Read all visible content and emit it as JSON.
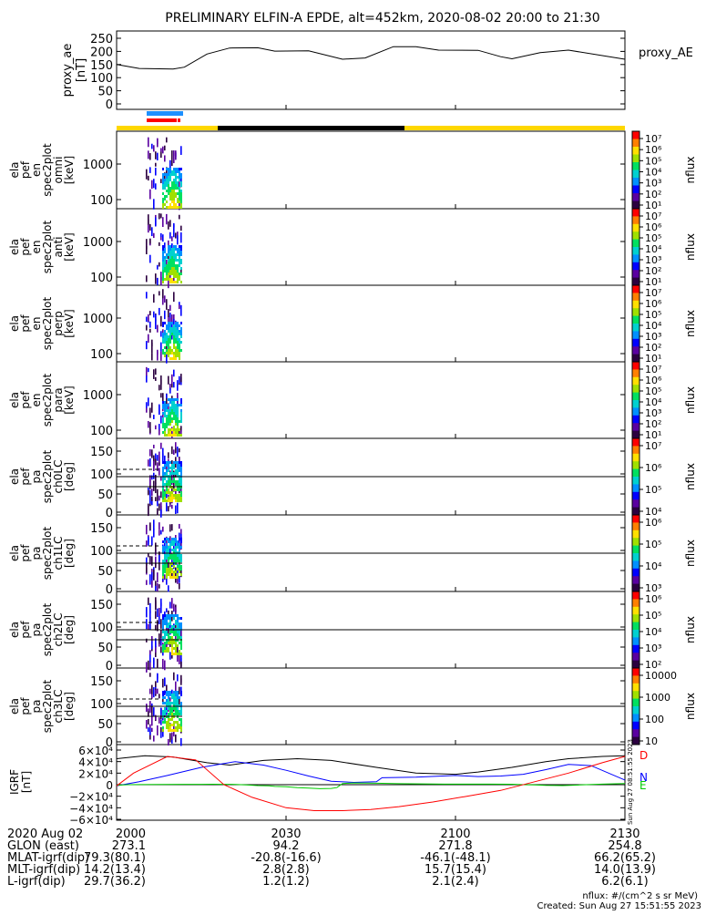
{
  "title": "PRELIMINARY ELFIN-A EPDE, alt=452km, 2020-08-02 20:00 to 21:30",
  "chart_data": {
    "type": "line",
    "x_ticks": [
      "2000",
      "2030",
      "2100",
      "2130"
    ],
    "x_range": [
      "20:00",
      "21:30"
    ],
    "panels": [
      {
        "id": "proxy_ae",
        "ylabel": [
          "proxy_ae",
          "[nT]"
        ],
        "legend": "proxy_AE",
        "yticks": [
          "250",
          "200",
          "150",
          "100",
          "50",
          "0"
        ],
        "ylim": [
          0,
          260
        ],
        "series": [
          {
            "name": "proxy_AE",
            "color": "#000000",
            "points": [
              [
                0,
                150
              ],
              [
                4,
                135
              ],
              [
                10,
                133
              ],
              [
                12,
                140
              ],
              [
                16,
                190
              ],
              [
                20,
                213
              ],
              [
                25,
                214
              ],
              [
                28,
                201
              ],
              [
                34,
                202
              ],
              [
                40,
                170
              ],
              [
                44,
                175
              ],
              [
                49,
                218
              ],
              [
                53,
                218
              ],
              [
                57,
                205
              ],
              [
                64,
                204
              ],
              [
                68,
                180
              ],
              [
                70,
                172
              ],
              [
                75,
                195
              ],
              [
                80,
                205
              ],
              [
                90,
                170
              ]
            ]
          }
        ]
      },
      {
        "id": "en_omni",
        "ylabel": [
          "ela",
          "pef",
          "en",
          "spec2plot",
          "omni",
          "[keV]"
        ],
        "yticks": [
          "1000",
          "100"
        ],
        "cbar": "nflux"
      },
      {
        "id": "en_anti",
        "ylabel": [
          "ela",
          "pef",
          "en",
          "spec2plot",
          "anti",
          "[keV]"
        ],
        "yticks": [
          "1000",
          "100"
        ],
        "cbar": "nflux"
      },
      {
        "id": "en_perp",
        "ylabel": [
          "ela",
          "pef",
          "en",
          "spec2plot",
          "perp",
          "[keV]"
        ],
        "yticks": [
          "1000",
          "100"
        ],
        "cbar": "nflux"
      },
      {
        "id": "en_para",
        "ylabel": [
          "ela",
          "pef",
          "en",
          "spec2plot",
          "para",
          "[keV]"
        ],
        "yticks": [
          "1000",
          "100"
        ],
        "cbar": "nflux"
      },
      {
        "id": "pa_ch0",
        "ylabel": [
          "ela",
          "pef",
          "pa",
          "spec2plot",
          "ch0LC",
          "[deg]"
        ],
        "yticks": [
          "150",
          "100",
          "50",
          "0"
        ],
        "cbar": "nflux"
      },
      {
        "id": "pa_ch1",
        "ylabel": [
          "ela",
          "pef",
          "pa",
          "spec2plot",
          "ch1LC",
          "[deg]"
        ],
        "yticks": [
          "150",
          "100",
          "50",
          "0"
        ],
        "cbar": "nflux"
      },
      {
        "id": "pa_ch2",
        "ylabel": [
          "ela",
          "pef",
          "pa",
          "spec2plot",
          "ch2LC",
          "[deg]"
        ],
        "yticks": [
          "150",
          "100",
          "50",
          "0"
        ],
        "cbar": "nflux"
      },
      {
        "id": "pa_ch3",
        "ylabel": [
          "ela",
          "pef",
          "pa",
          "spec2plot",
          "ch3LC",
          "[deg]"
        ],
        "yticks": [
          "150",
          "100",
          "50",
          "0"
        ],
        "cbar": "nflux"
      },
      {
        "id": "igrf",
        "ylabel": [
          "IGRF",
          "[nT]"
        ],
        "yticks": [
          "6×10⁴",
          "4×10⁴",
          "2×10⁴",
          "0",
          "−2×10⁴",
          "−4×10⁴",
          "−6×10⁴"
        ],
        "ylim": [
          -62000,
          62000
        ],
        "series": [
          {
            "name": "D",
            "color": "#000000",
            "points": [
              [
                0,
                45000
              ],
              [
                5,
                50000
              ],
              [
                10,
                48000
              ],
              [
                16,
                38000
              ],
              [
                20,
                34000
              ],
              [
                26,
                42000
              ],
              [
                32,
                45000
              ],
              [
                38,
                42000
              ],
              [
                46,
                30000
              ],
              [
                53,
                20000
              ],
              [
                60,
                18000
              ],
              [
                64,
                22000
              ],
              [
                70,
                30000
              ],
              [
                76,
                40000
              ],
              [
                80,
                45000
              ],
              [
                86,
                49000
              ],
              [
                90,
                50000
              ]
            ]
          },
          {
            "name": "N",
            "color": "#0000ff",
            "points": [
              [
                0,
                -2000
              ],
              [
                4,
                5000
              ],
              [
                9,
                16000
              ],
              [
                15,
                30000
              ],
              [
                21,
                40000
              ],
              [
                26,
                34000
              ],
              [
                30,
                25000
              ],
              [
                34,
                15000
              ],
              [
                38,
                6000
              ],
              [
                42,
                4000
              ],
              [
                46,
                5000
              ],
              [
                47,
                12000
              ],
              [
                53,
                13000
              ],
              [
                60,
                16000
              ],
              [
                64,
                14000
              ],
              [
                68,
                15000
              ],
              [
                72,
                18000
              ],
              [
                76,
                26000
              ],
              [
                80,
                35000
              ],
              [
                84,
                33000
              ],
              [
                90,
                8000
              ]
            ]
          },
          {
            "name": "E",
            "color": "#00cc00",
            "points": [
              [
                0,
                -1000
              ],
              [
                2,
                0
              ],
              [
                4,
                200
              ],
              [
                8,
                300
              ],
              [
                12,
                600
              ],
              [
                15,
                700
              ],
              [
                17,
                800
              ],
              [
                19,
                700
              ],
              [
                21,
                400
              ],
              [
                23,
                -500
              ],
              [
                25,
                -1500
              ],
              [
                27,
                -2000
              ],
              [
                28,
                -3000
              ],
              [
                30,
                -3500
              ],
              [
                32,
                -5000
              ],
              [
                34,
                -6000
              ],
              [
                36,
                -7000
              ],
              [
                38,
                -6500
              ],
              [
                39,
                -5000
              ],
              [
                40,
                2000
              ],
              [
                42,
                3000
              ],
              [
                46,
                2500
              ],
              [
                50,
                1800
              ],
              [
                54,
                1400
              ],
              [
                58,
                1000
              ],
              [
                62,
                900
              ],
              [
                66,
                900
              ],
              [
                70,
                800
              ],
              [
                72,
                0
              ],
              [
                74,
                -500
              ],
              [
                76,
                -1200
              ],
              [
                79,
                -1500
              ],
              [
                82,
                -500
              ],
              [
                86,
                1000
              ],
              [
                90,
                2000
              ]
            ]
          },
          {
            "name": "D_total",
            "color": "#ff0000",
            "points": [
              [
                0,
                -2000
              ],
              [
                3,
                20000
              ],
              [
                9,
                49000
              ],
              [
                14,
                43000
              ],
              [
                19,
                0
              ],
              [
                24,
                -22000
              ],
              [
                30,
                -40000
              ],
              [
                35,
                -45000
              ],
              [
                40,
                -45000
              ],
              [
                45,
                -43000
              ],
              [
                50,
                -38000
              ],
              [
                56,
                -30000
              ],
              [
                62,
                -20000
              ],
              [
                68,
                -10000
              ],
              [
                74,
                5000
              ],
              [
                80,
                20000
              ],
              [
                86,
                38000
              ],
              [
                90,
                49000
              ]
            ]
          }
        ]
      }
    ],
    "bars": {
      "blue_bar": "#1e90ff",
      "red_bar": "#ff0000",
      "yellow": "#ffd700",
      "black": "#000000"
    }
  },
  "colorbars": [
    {
      "labels": [
        "10⁷",
        "10⁶",
        "10⁵",
        "10⁴",
        "10³",
        "10²",
        "10¹"
      ],
      "unit": "nflux"
    },
    {
      "labels": [
        "10⁷",
        "10⁶",
        "10⁵",
        "10⁴",
        "10³",
        "10²",
        "10¹"
      ],
      "unit": "nflux"
    },
    {
      "labels": [
        "10⁷",
        "10⁶",
        "10⁵",
        "10⁴",
        "10³",
        "10²",
        "10¹"
      ],
      "unit": "nflux"
    },
    {
      "labels": [
        "10⁷",
        "10⁶",
        "10⁵",
        "10⁴",
        "10³",
        "10²",
        "10¹"
      ],
      "unit": "nflux"
    },
    {
      "labels": [
        "10⁷",
        "10⁶",
        "10⁵",
        "10⁴"
      ],
      "unit": "nflux"
    },
    {
      "labels": [
        "10⁶",
        "10⁵",
        "10⁴",
        "10³"
      ],
      "unit": "nflux"
    },
    {
      "labels": [
        "10⁶",
        "10⁵",
        "10⁴",
        "10³",
        "10²"
      ],
      "unit": "nflux"
    },
    {
      "labels": [
        "10000",
        "1000",
        "100",
        "10"
      ],
      "unit": "nflux"
    }
  ],
  "igrf_legend": [
    "D",
    "N",
    "E"
  ],
  "footer": {
    "rows": [
      {
        "label": "2020 Aug 02",
        "vals": [
          "2000",
          "",
          "",
          ""
        ]
      },
      {
        "label": "GLON (east)",
        "vals": [
          "273.1",
          "94.2",
          "271.8",
          "254.8"
        ]
      },
      {
        "label": "MLAT-igrf(dip)",
        "vals": [
          "79.3(80.1)",
          "-20.8(-16.6)",
          "-46.1(-48.1)",
          "66.2(65.2)"
        ]
      },
      {
        "label": "MLT-igrf(dip)",
        "vals": [
          "14.2(13.4)",
          "2.8(2.8)",
          "15.7(15.4)",
          "14.0(13.9)"
        ]
      },
      {
        "label": "L-igrf(dip)",
        "vals": [
          "29.7(36.2)",
          "1.2(1.2)",
          "2.1(2.4)",
          "6.2(6.1)"
        ]
      }
    ],
    "time_labels": [
      "2000",
      "2030",
      "2100",
      "2130"
    ],
    "nflux_note": "nflux: #/(cm^2 s sr MeV)",
    "created": "Created: Sun Aug 27 15:51:55 2023",
    "side_stamp": "Sun Aug 27 08:51:55 2023"
  }
}
